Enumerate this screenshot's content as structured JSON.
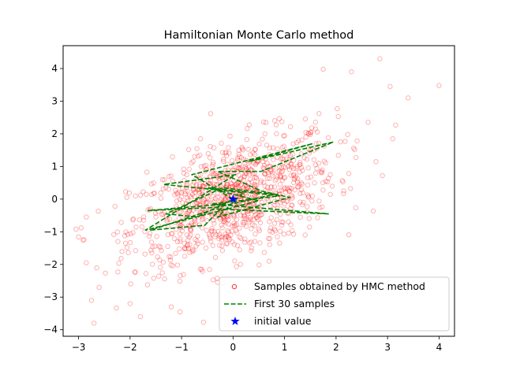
{
  "chart_data": {
    "type": "scatter",
    "title": "Hamiltonian Monte Carlo method",
    "xlabel": "",
    "ylabel": "",
    "xlim": [
      -3.3,
      4.3
    ],
    "ylim": [
      -4.2,
      4.7
    ],
    "x_ticks": [
      -3,
      -2,
      -1,
      0,
      1,
      2,
      3,
      4
    ],
    "y_ticks": [
      -4,
      -3,
      -2,
      -1,
      0,
      1,
      2,
      3,
      4
    ],
    "grid": false,
    "legend_position": "lower-right",
    "colors": {
      "samples": "#ff0000",
      "first_samples": "#008000",
      "initial": "#0000ff"
    },
    "series": [
      {
        "name": "Samples obtained by HMC method",
        "marker": "open-circle",
        "correlation": 0.5,
        "x": [
          2.85,
          3.05,
          4.0,
          3.4,
          3.1,
          2.9,
          1.75,
          2.3,
          -2.95,
          -3.05,
          -2.85,
          -2.7,
          -2.6,
          -2.75,
          -1.8,
          -2.0,
          -1.2,
          -0.3,
          0.7,
          1.4
        ],
        "y": [
          4.3,
          3.45,
          3.48,
          3.1,
          1.85,
          0.72,
          3.98,
          3.9,
          -0.88,
          -0.92,
          -1.95,
          -3.8,
          -2.7,
          -3.1,
          -3.6,
          -3.2,
          -3.3,
          -2.55,
          -1.9,
          -1.1
        ]
      },
      {
        "name": "First 30 samples",
        "style": "dashed",
        "x": [
          0.0,
          -0.8,
          1.55,
          0.3,
          1.95,
          0.55,
          -0.3,
          0.55,
          1.1,
          -0.3,
          0.2,
          -1.35,
          0.05,
          -1.7,
          0.5,
          -0.5,
          0.9,
          -0.4,
          1.85,
          -0.35,
          -1.6,
          -0.55,
          -0.15,
          -1.65,
          -0.3,
          0.8,
          -0.2,
          -1.3,
          -0.7,
          0.0
        ],
        "y": [
          0.0,
          0.75,
          1.7,
          1.15,
          1.75,
          0.85,
          0.85,
          0.25,
          0.05,
          -0.55,
          0.2,
          0.45,
          0.75,
          -0.95,
          -0.05,
          0.35,
          0.1,
          -0.15,
          -0.45,
          -0.3,
          -0.95,
          -0.8,
          -0.15,
          -0.35,
          -0.25,
          0.15,
          0.35,
          -0.45,
          -0.55,
          0.0
        ]
      },
      {
        "name": "initial value",
        "marker": "star",
        "x": [
          0.0
        ],
        "y": [
          0.0
        ]
      }
    ]
  }
}
